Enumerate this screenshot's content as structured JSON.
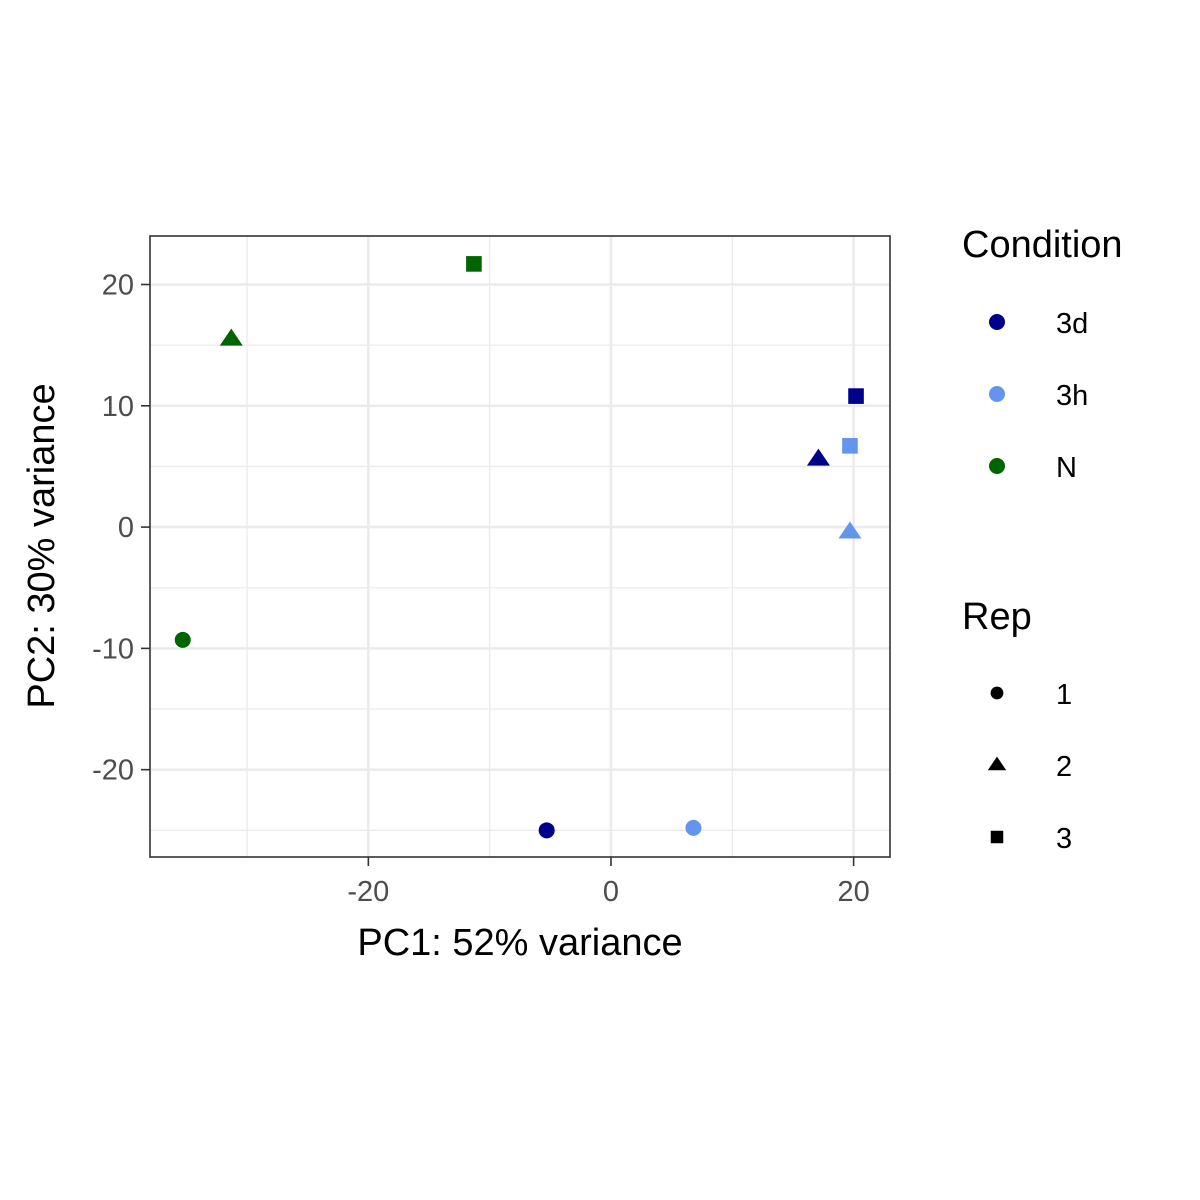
{
  "chart_data": {
    "type": "scatter",
    "xlabel": "PC1: 52% variance",
    "ylabel": "PC2: 30% variance",
    "xlim": [
      -38,
      23
    ],
    "ylim": [
      -27.2,
      24
    ],
    "x_ticks": [
      -20,
      0,
      20
    ],
    "y_ticks": [
      20,
      10,
      0,
      -10,
      -20
    ],
    "x_tick_labels": [
      "-20",
      "0",
      "20"
    ],
    "y_tick_labels": [
      "20",
      "10",
      "0",
      "-10",
      "-20"
    ],
    "grid": true,
    "legend_position": "right",
    "legends": {
      "color": {
        "title": "Condition",
        "entries": [
          {
            "label": "3d",
            "color": "#00008B"
          },
          {
            "label": "3h",
            "color": "#6495ED"
          },
          {
            "label": "N",
            "color": "#006400"
          }
        ]
      },
      "shape": {
        "title": "Rep",
        "entries": [
          {
            "label": "1",
            "shape": "circle"
          },
          {
            "label": "2",
            "shape": "triangle"
          },
          {
            "label": "3",
            "shape": "square"
          }
        ]
      }
    },
    "points": [
      {
        "x": -5.3,
        "y": -25.0,
        "condition": "3d",
        "rep": "1"
      },
      {
        "x": 17.1,
        "y": 5.6,
        "condition": "3d",
        "rep": "2"
      },
      {
        "x": 20.2,
        "y": 10.8,
        "condition": "3d",
        "rep": "3"
      },
      {
        "x": 6.8,
        "y": -24.8,
        "condition": "3h",
        "rep": "1"
      },
      {
        "x": 19.7,
        "y": -0.4,
        "condition": "3h",
        "rep": "2"
      },
      {
        "x": 19.7,
        "y": 6.7,
        "condition": "3h",
        "rep": "3"
      },
      {
        "x": -35.3,
        "y": -9.3,
        "condition": "N",
        "rep": "1"
      },
      {
        "x": -31.3,
        "y": 15.5,
        "condition": "N",
        "rep": "2"
      },
      {
        "x": -11.3,
        "y": 21.7,
        "condition": "N",
        "rep": "3"
      }
    ]
  }
}
